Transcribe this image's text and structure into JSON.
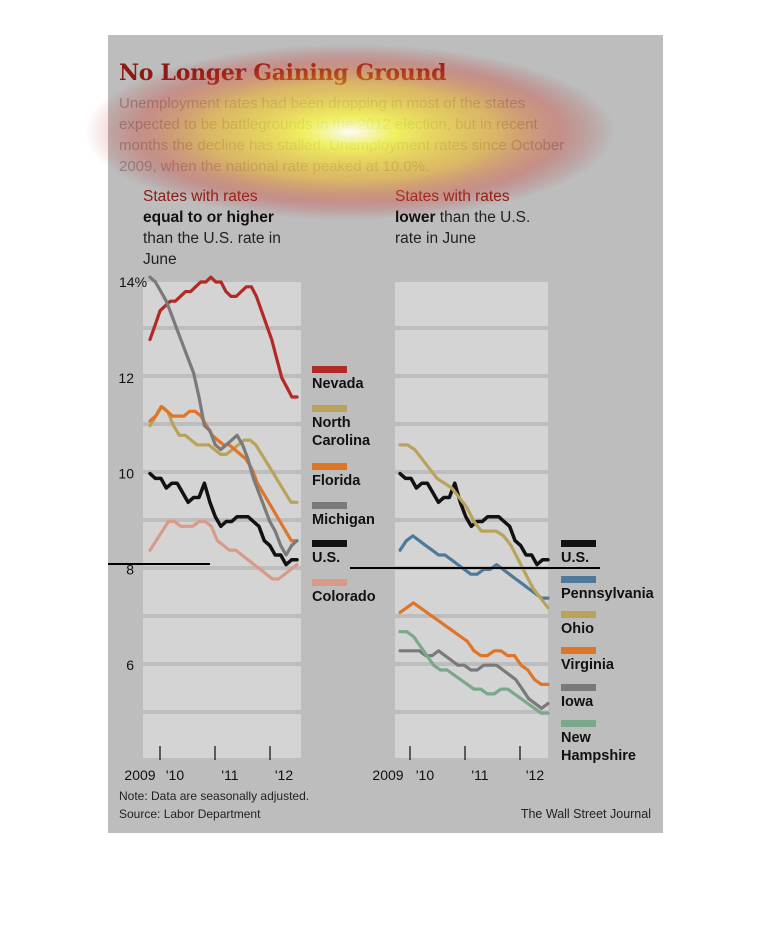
{
  "header": {
    "title": "No Longer Gaining Ground",
    "intro": "Unemployment rates had been dropping in most of the states expected to be battlegrounds in the 2012 election, but in recent months the decline has stalled. Unemployment rates since October 2009, when the national rate peaked at 10.0%."
  },
  "subheads": {
    "left_lead": "States with rates",
    "left_bold": "equal to or higher",
    "left_rest": "than the U.S. rate in June",
    "right_lead": "States with rates",
    "right_bold": "lower",
    "right_rest": "than the U.S. rate in June"
  },
  "footer": {
    "note": "Note: Data are seasonally adjusted.",
    "source": "Source: Labor Department",
    "credit": "The Wall Street Journal"
  },
  "colors": {
    "panel": "#bdbdbd",
    "plot_band_light": "#d6d6d6",
    "title": "#8b1a12"
  },
  "chart_data": [
    {
      "type": "line",
      "title": "States with rates equal to or higher than the U.S. rate in June",
      "ylim": [
        4,
        14
      ],
      "y_ticks": [
        6,
        8,
        10,
        12,
        14
      ],
      "y_tick_labels": [
        "6",
        "8",
        "10",
        "12",
        "14%"
      ],
      "x_ticks": [
        "2009",
        "'10",
        "'11",
        "'12"
      ],
      "x_range": [
        "2009-10",
        "2012-06"
      ],
      "grid": true,
      "series": [
        {
          "name": "Nevada",
          "color": "#b22a25",
          "values": [
            12.8,
            13.1,
            13.4,
            13.5,
            13.6,
            13.6,
            13.7,
            13.8,
            13.8,
            13.9,
            14.0,
            14.0,
            14.1,
            14.0,
            14.0,
            13.8,
            13.7,
            13.7,
            13.8,
            13.9,
            13.9,
            13.7,
            13.4,
            13.1,
            12.8,
            12.4,
            12.0,
            11.8,
            11.6,
            11.6
          ]
        },
        {
          "name": "North Carolina",
          "color": "#b9a35b",
          "values": [
            11.0,
            11.2,
            11.4,
            11.3,
            11.0,
            10.8,
            10.8,
            10.7,
            10.6,
            10.6,
            10.6,
            10.5,
            10.4,
            10.4,
            10.5,
            10.6,
            10.7,
            10.7,
            10.6,
            10.4,
            10.2,
            10.0,
            9.8,
            9.6,
            9.4,
            9.4
          ]
        },
        {
          "name": "Florida",
          "color": "#e07528",
          "values": [
            11.1,
            11.2,
            11.4,
            11.3,
            11.2,
            11.2,
            11.2,
            11.3,
            11.3,
            11.2,
            11.0,
            10.8,
            10.7,
            10.6,
            10.6,
            10.5,
            10.4,
            10.3,
            10.1,
            9.8,
            9.6,
            9.4,
            9.2,
            9.0,
            8.8,
            8.6,
            8.6
          ]
        },
        {
          "name": "Michigan",
          "color": "#7a7a7a",
          "values": [
            14.1,
            14.0,
            13.8,
            13.6,
            13.3,
            13.0,
            12.7,
            12.4,
            12.1,
            11.6,
            11.0,
            10.9,
            10.6,
            10.5,
            10.6,
            10.7,
            10.8,
            10.6,
            10.3,
            9.9,
            9.6,
            9.3,
            9.0,
            8.8,
            8.5,
            8.3,
            8.5,
            8.6
          ]
        },
        {
          "name": "U.S.",
          "color": "#111111",
          "values": [
            10.0,
            9.9,
            9.9,
            9.7,
            9.8,
            9.8,
            9.6,
            9.4,
            9.5,
            9.5,
            9.8,
            9.4,
            9.1,
            8.9,
            9.0,
            9.0,
            9.1,
            9.1,
            9.1,
            9.0,
            8.9,
            8.6,
            8.5,
            8.3,
            8.3,
            8.1,
            8.2,
            8.2
          ]
        },
        {
          "name": "Colorado",
          "color": "#d99a8a",
          "values": [
            8.4,
            8.6,
            8.8,
            9.0,
            9.0,
            8.9,
            8.9,
            8.9,
            9.0,
            9.0,
            8.9,
            8.6,
            8.5,
            8.4,
            8.4,
            8.3,
            8.2,
            8.1,
            8.0,
            7.9,
            7.8,
            7.8,
            7.9,
            8.0,
            8.1
          ]
        }
      ]
    },
    {
      "type": "line",
      "title": "States with rates lower than the U.S. rate in June",
      "ylim": [
        4,
        14
      ],
      "x_ticks": [
        "2009",
        "'10",
        "'11",
        "'12"
      ],
      "x_range": [
        "2009-10",
        "2012-06"
      ],
      "grid": true,
      "series": [
        {
          "name": "U.S.",
          "color": "#111111",
          "values": [
            10.0,
            9.9,
            9.9,
            9.7,
            9.8,
            9.8,
            9.6,
            9.4,
            9.5,
            9.5,
            9.8,
            9.4,
            9.1,
            8.9,
            9.0,
            9.0,
            9.1,
            9.1,
            9.1,
            9.0,
            8.9,
            8.6,
            8.5,
            8.3,
            8.3,
            8.1,
            8.2,
            8.2
          ]
        },
        {
          "name": "Pennsylvania",
          "color": "#4d7a9c",
          "values": [
            8.4,
            8.6,
            8.7,
            8.6,
            8.5,
            8.4,
            8.3,
            8.3,
            8.2,
            8.1,
            8.0,
            7.9,
            7.9,
            8.0,
            8.0,
            8.1,
            8.0,
            7.9,
            7.8,
            7.7,
            7.6,
            7.5,
            7.4,
            7.4
          ]
        },
        {
          "name": "Ohio",
          "color": "#b9a35b",
          "values": [
            10.6,
            10.6,
            10.5,
            10.3,
            10.1,
            9.9,
            9.8,
            9.7,
            9.5,
            9.3,
            9.0,
            8.8,
            8.8,
            8.8,
            8.7,
            8.5,
            8.2,
            7.9,
            7.6,
            7.4,
            7.2
          ]
        },
        {
          "name": "Virginia",
          "color": "#e07528",
          "values": [
            7.1,
            7.2,
            7.3,
            7.2,
            7.1,
            7.0,
            6.9,
            6.8,
            6.7,
            6.6,
            6.5,
            6.3,
            6.2,
            6.2,
            6.3,
            6.3,
            6.2,
            6.2,
            6.0,
            5.9,
            5.7,
            5.6,
            5.6
          ]
        },
        {
          "name": "Iowa",
          "color": "#7a7a7a",
          "values": [
            6.3,
            6.3,
            6.3,
            6.3,
            6.2,
            6.2,
            6.3,
            6.2,
            6.1,
            6.0,
            6.0,
            5.9,
            5.9,
            6.0,
            6.0,
            6.0,
            5.9,
            5.8,
            5.7,
            5.5,
            5.3,
            5.2,
            5.1,
            5.2
          ]
        },
        {
          "name": "New Hampshire",
          "color": "#7aa88a",
          "values": [
            6.7,
            6.7,
            6.6,
            6.4,
            6.2,
            6.0,
            5.9,
            5.9,
            5.8,
            5.7,
            5.6,
            5.5,
            5.5,
            5.4,
            5.4,
            5.5,
            5.5,
            5.4,
            5.3,
            5.2,
            5.1,
            5.0,
            5.0
          ]
        }
      ]
    }
  ]
}
